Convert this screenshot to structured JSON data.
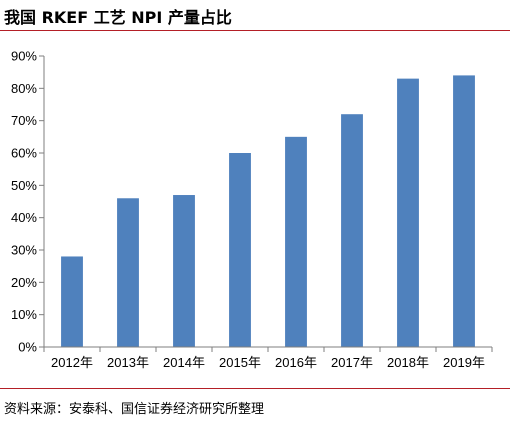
{
  "title": "我国 RKEF 工艺 NPI 产量占比",
  "source": "资料来源：安泰科、国信证券经济研究所整理",
  "colors": {
    "bar": "#4f81bd",
    "rule": "#b41f26",
    "axis": "#7f7f7f"
  },
  "chart_data": {
    "type": "bar",
    "categories": [
      "2012年",
      "2013年",
      "2014年",
      "2015年",
      "2016年",
      "2017年",
      "2018年",
      "2019年"
    ],
    "values": [
      28,
      46,
      47,
      60,
      65,
      72,
      83,
      84
    ],
    "unit": "%",
    "ylim": [
      0,
      90
    ],
    "yticks": [
      0,
      10,
      20,
      30,
      40,
      50,
      60,
      70,
      80,
      90
    ],
    "ytick_labels": [
      "0%",
      "10%",
      "20%",
      "30%",
      "40%",
      "50%",
      "60%",
      "70%",
      "80%",
      "90%"
    ],
    "grid": false,
    "legend": "none",
    "xlabel": "",
    "ylabel": ""
  }
}
